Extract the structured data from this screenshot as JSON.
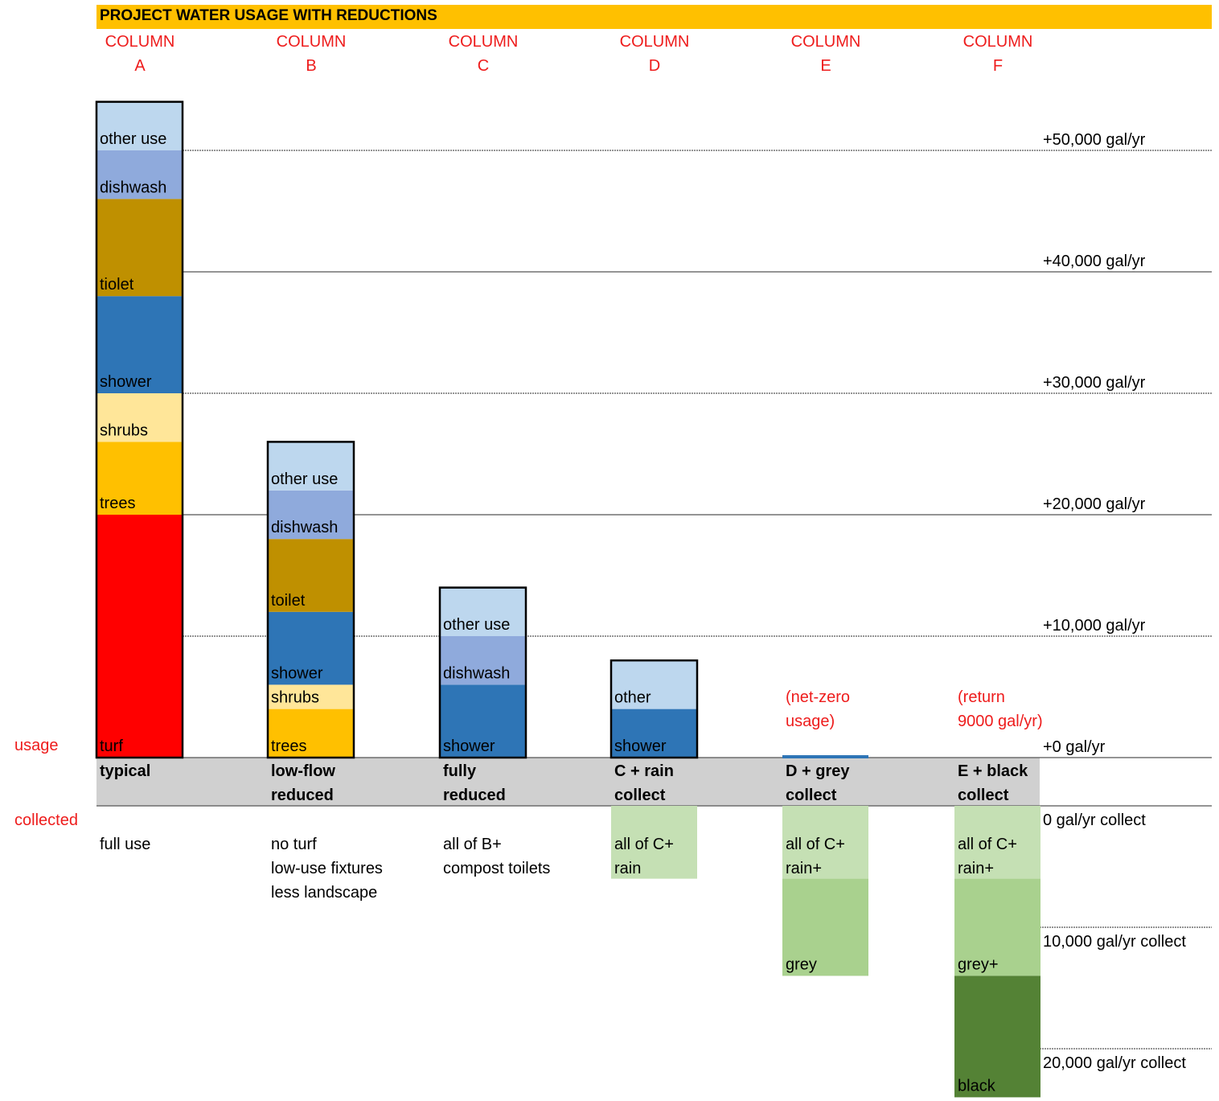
{
  "title": "PROJECT WATER USAGE WITH REDUCTIONS",
  "colors": {
    "title_bar": "#FFC000",
    "annotation_red": "#EE1C1C",
    "label_band": "#D0D0D0",
    "other_use": "#BDD7EE",
    "dishwash": "#8FAADC",
    "toilet": "#BF9000",
    "shower": "#2E75B6",
    "shrubs": "#FFE699",
    "trees": "#FFC000",
    "turf": "#FF0000",
    "rain": "#C5E0B4",
    "grey": "#A9D18E",
    "black": "#548235"
  },
  "columns": [
    {
      "heading": "COLUMN A",
      "line1": "COLUMN",
      "line2": "A",
      "name_line1": "typical",
      "name_line2": "",
      "desc": [
        "full use"
      ],
      "note": []
    },
    {
      "heading": "COLUMN B",
      "line1": "COLUMN",
      "line2": "B",
      "name_line1": "low-flow",
      "name_line2": "reduced",
      "desc": [
        "no turf",
        "low-use fixtures",
        "less landscape"
      ],
      "note": []
    },
    {
      "heading": "COLUMN C",
      "line1": "COLUMN",
      "line2": "C",
      "name_line1": "fully",
      "name_line2": "reduced",
      "desc": [
        "all of B+",
        "compost toilets"
      ],
      "note": []
    },
    {
      "heading": "COLUMN D",
      "line1": "COLUMN",
      "line2": "D",
      "name_line1": "C + rain",
      "name_line2": "collect",
      "desc": [
        "all of C+",
        "rain"
      ],
      "note": []
    },
    {
      "heading": "COLUMN E",
      "line1": "COLUMN",
      "line2": "E",
      "name_line1": "D + grey",
      "name_line2": "collect",
      "desc": [],
      "note": [
        "(net-zero",
        "usage)"
      ]
    },
    {
      "heading": "COLUMN F",
      "line1": "COLUMN",
      "line2": "F",
      "name_line1": "E + black",
      "name_line2": "collect",
      "desc": [],
      "note": [
        "(return",
        "9000 gal/yr)"
      ]
    }
  ],
  "side_labels": {
    "usage": "usage",
    "collected": "collected"
  },
  "usage_axis": [
    {
      "value": 50000,
      "label": "+50,000 gal/yr"
    },
    {
      "value": 40000,
      "label": "+40,000 gal/yr"
    },
    {
      "value": 30000,
      "label": "+30,000 gal/yr"
    },
    {
      "value": 20000,
      "label": "+20,000 gal/yr"
    },
    {
      "value": 10000,
      "label": "+10,000 gal/yr"
    },
    {
      "value": 0,
      "label": "+0 gal/yr"
    }
  ],
  "collect_axis": [
    {
      "value": 0,
      "label": "0 gal/yr collect"
    },
    {
      "value": 10000,
      "label": "10,000 gal/yr collect"
    },
    {
      "value": 20000,
      "label": "20,000 gal/yr collect"
    }
  ],
  "chart_data": {
    "type": "bar",
    "title": "PROJECT WATER USAGE WITH REDUCTIONS",
    "stacked": true,
    "unit": "gal/yr",
    "categories": [
      "typical",
      "low-flow reduced",
      "fully reduced",
      "C + rain collect",
      "D + grey collect",
      "E + black collect"
    ],
    "usage": [
      {
        "column": "A",
        "segments": [
          {
            "label": "turf",
            "key": "turf",
            "value": 20000
          },
          {
            "label": "trees",
            "key": "trees",
            "value": 6000
          },
          {
            "label": "shrubs",
            "key": "shrubs",
            "value": 4000
          },
          {
            "label": "shower",
            "key": "shower",
            "value": 8000
          },
          {
            "label": "tiolet",
            "key": "toilet",
            "value": 8000
          },
          {
            "label": "dishwash",
            "key": "dishwash",
            "value": 4000
          },
          {
            "label": "other use",
            "key": "other_use",
            "value": 4000
          }
        ]
      },
      {
        "column": "B",
        "segments": [
          {
            "label": "trees",
            "key": "trees",
            "value": 4000
          },
          {
            "label": "shrubs",
            "key": "shrubs",
            "value": 2000
          },
          {
            "label": "shower",
            "key": "shower",
            "value": 6000
          },
          {
            "label": "toilet",
            "key": "toilet",
            "value": 6000
          },
          {
            "label": "dishwash",
            "key": "dishwash",
            "value": 4000
          },
          {
            "label": "other use",
            "key": "other_use",
            "value": 4000
          }
        ]
      },
      {
        "column": "C",
        "segments": [
          {
            "label": "shower",
            "key": "shower",
            "value": 6000
          },
          {
            "label": "dishwash",
            "key": "dishwash",
            "value": 4000
          },
          {
            "label": "other use",
            "key": "other_use",
            "value": 4000
          }
        ]
      },
      {
        "column": "D",
        "segments": [
          {
            "label": "shower",
            "key": "shower",
            "value": 4000
          },
          {
            "label": "other",
            "key": "other_use",
            "value": 4000
          }
        ]
      },
      {
        "column": "E",
        "segments": []
      },
      {
        "column": "F",
        "segments": []
      }
    ],
    "collected": [
      {
        "column": "A",
        "segments": []
      },
      {
        "column": "B",
        "segments": []
      },
      {
        "column": "C",
        "segments": []
      },
      {
        "column": "D",
        "segments": [
          {
            "label": "rain",
            "key": "rain",
            "value": 6000
          }
        ]
      },
      {
        "column": "E",
        "segments": [
          {
            "label": "rain+",
            "key": "rain",
            "value": 6000
          },
          {
            "label": "grey",
            "key": "grey",
            "value": 8000
          }
        ]
      },
      {
        "column": "F",
        "segments": [
          {
            "label": "rain+",
            "key": "rain",
            "value": 6000
          },
          {
            "label": "grey+",
            "key": "grey",
            "value": 8000
          },
          {
            "label": "black",
            "key": "black",
            "value": 10000
          }
        ]
      }
    ],
    "usage_range": [
      0,
      54000
    ],
    "collect_range": [
      0,
      24000
    ]
  }
}
